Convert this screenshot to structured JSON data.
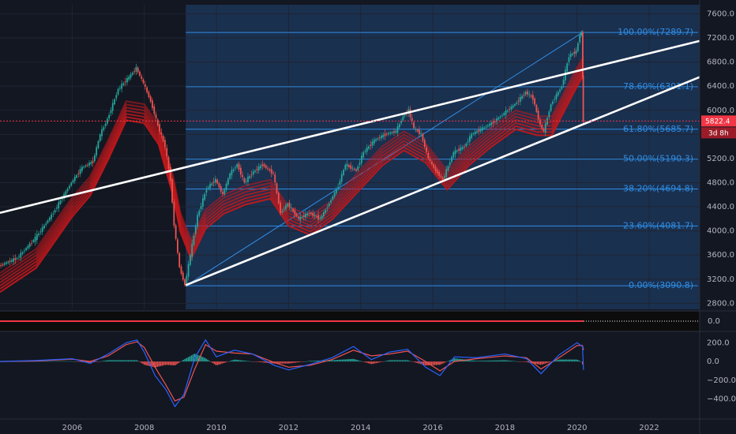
{
  "chart_data": [
    {
      "type": "line",
      "panel": "price",
      "x_range": [
        2004.0,
        2023.4
      ],
      "ylim": [
        2700,
        7750
      ],
      "y_ticks": [
        "7600.0",
        "7200.0",
        "6800.0",
        "6400.0",
        "6000.0",
        "5600.0",
        "5200.0",
        "4800.0",
        "4400.0",
        "4000.0",
        "3600.0",
        "3200.0",
        "2800.0"
      ],
      "price_series": {
        "name": "",
        "points": [
          [
            2004.0,
            3420
          ],
          [
            2004.5,
            3550
          ],
          [
            2005.0,
            3880
          ],
          [
            2005.5,
            4300
          ],
          [
            2006.0,
            4800
          ],
          [
            2006.3,
            5050
          ],
          [
            2006.6,
            5150
          ],
          [
            2006.8,
            5600
          ],
          [
            2007.0,
            5850
          ],
          [
            2007.3,
            6350
          ],
          [
            2007.6,
            6550
          ],
          [
            2007.8,
            6700
          ],
          [
            2008.0,
            6450
          ],
          [
            2008.2,
            6150
          ],
          [
            2008.4,
            5750
          ],
          [
            2008.6,
            5400
          ],
          [
            2008.75,
            4850
          ],
          [
            2008.85,
            4100
          ],
          [
            2009.0,
            3400
          ],
          [
            2009.15,
            3100
          ],
          [
            2009.3,
            3600
          ],
          [
            2009.5,
            4250
          ],
          [
            2009.75,
            4700
          ],
          [
            2010.0,
            4850
          ],
          [
            2010.2,
            4600
          ],
          [
            2010.4,
            4950
          ],
          [
            2010.6,
            5100
          ],
          [
            2010.8,
            4800
          ],
          [
            2011.0,
            4950
          ],
          [
            2011.3,
            5100
          ],
          [
            2011.6,
            4950
          ],
          [
            2011.8,
            4300
          ],
          [
            2012.0,
            4450
          ],
          [
            2012.3,
            4200
          ],
          [
            2012.6,
            4300
          ],
          [
            2012.9,
            4200
          ],
          [
            2013.1,
            4400
          ],
          [
            2013.4,
            4750
          ],
          [
            2013.6,
            5100
          ],
          [
            2013.9,
            5000
          ],
          [
            2014.1,
            5300
          ],
          [
            2014.4,
            5500
          ],
          [
            2014.7,
            5600
          ],
          [
            2015.0,
            5650
          ],
          [
            2015.2,
            5900
          ],
          [
            2015.35,
            6000
          ],
          [
            2015.5,
            5700
          ],
          [
            2015.7,
            5600
          ],
          [
            2015.9,
            5200
          ],
          [
            2016.1,
            5000
          ],
          [
            2016.3,
            4850
          ],
          [
            2016.6,
            5300
          ],
          [
            2016.9,
            5400
          ],
          [
            2017.1,
            5600
          ],
          [
            2017.4,
            5700
          ],
          [
            2017.7,
            5800
          ],
          [
            2018.0,
            5950
          ],
          [
            2018.3,
            6100
          ],
          [
            2018.6,
            6300
          ],
          [
            2018.8,
            6200
          ],
          [
            2019.0,
            5750
          ],
          [
            2019.1,
            5650
          ],
          [
            2019.3,
            6100
          ],
          [
            2019.6,
            6400
          ],
          [
            2019.8,
            6900
          ],
          [
            2020.0,
            6980
          ],
          [
            2020.1,
            7250
          ],
          [
            2020.15,
            7290
          ],
          [
            2020.18,
            5822
          ]
        ]
      },
      "ma_ribbon": {
        "name": "",
        "points": [
          [
            2004.0,
            3300
          ],
          [
            2005.0,
            3700
          ],
          [
            2006.0,
            4550
          ],
          [
            2006.5,
            4900
          ],
          [
            2007.0,
            5500
          ],
          [
            2007.5,
            6150
          ],
          [
            2008.0,
            6100
          ],
          [
            2008.4,
            5750
          ],
          [
            2008.8,
            4900
          ],
          [
            2009.0,
            4300
          ],
          [
            2009.3,
            3850
          ],
          [
            2009.7,
            4350
          ],
          [
            2010.2,
            4600
          ],
          [
            2010.8,
            4750
          ],
          [
            2011.5,
            4850
          ],
          [
            2012.0,
            4400
          ],
          [
            2012.6,
            4250
          ],
          [
            2013.2,
            4500
          ],
          [
            2013.9,
            4950
          ],
          [
            2014.6,
            5400
          ],
          [
            2015.2,
            5650
          ],
          [
            2015.8,
            5450
          ],
          [
            2016.4,
            5000
          ],
          [
            2017.0,
            5400
          ],
          [
            2017.6,
            5700
          ],
          [
            2018.3,
            6000
          ],
          [
            2018.9,
            5900
          ],
          [
            2019.3,
            5900
          ],
          [
            2019.9,
            6600
          ],
          [
            2020.18,
            6900
          ]
        ]
      },
      "channel_lines": [
        {
          "from": [
            2004.0,
            4300
          ],
          "to": [
            2023.4,
            7150
          ]
        },
        {
          "from": [
            2009.15,
            3100
          ],
          "to": [
            2023.4,
            6550
          ]
        }
      ],
      "fib_anchor": {
        "from": [
          2009.15,
          3090.8
        ],
        "to": [
          2020.15,
          7289.7
        ]
      },
      "fib_levels": [
        {
          "label": "100.00%(7289.7)",
          "value": 7289.7
        },
        {
          "label": "78.60%(6391.1)",
          "value": 6391.1
        },
        {
          "label": "61.80%(5685.7)",
          "value": 5685.7
        },
        {
          "label": "50.00%(5190.3)",
          "value": 5190.3
        },
        {
          "label": "38.20%(4694.8)",
          "value": 4694.8
        },
        {
          "label": "23.60%(4081.7)",
          "value": 4081.7
        },
        {
          "label": "0.00%(3090.8)",
          "value": 3090.8
        }
      ],
      "highlight_range": [
        2009.15,
        2023.4
      ],
      "last_price": {
        "label": "5822.4",
        "value": 5822.4
      },
      "countdown": "3d 8h",
      "colors": {
        "up": "#26a69a",
        "down": "#ef5350",
        "ribbon": "#c2181b",
        "fib": "#2f8de4",
        "channel": "#ffffff",
        "highlight": "#1e3a5f",
        "last": "#f23645"
      }
    },
    {
      "type": "line",
      "panel": "oscillator-1",
      "ylim": [
        -1,
        1
      ],
      "y_ticks": [
        "0.0"
      ],
      "value": 0.0,
      "colors": {
        "band": "#f23645"
      }
    },
    {
      "type": "line",
      "panel": "macd",
      "x_ticks": [
        "2006",
        "2008",
        "2010",
        "2012",
        "2014",
        "2016",
        "2018",
        "2020",
        "2022"
      ],
      "x_tick_values": [
        2006,
        2008,
        2010,
        2012,
        2014,
        2016,
        2018,
        2020,
        2022
      ],
      "ylim": [
        -520,
        270
      ],
      "y_ticks": [
        "200.0",
        "0.0",
        "−200.0",
        "−400.0"
      ],
      "y_tick_values": [
        200,
        0,
        -200,
        -400
      ],
      "macd_line": [
        [
          2004.0,
          0
        ],
        [
          2005.0,
          10
        ],
        [
          2006.0,
          30
        ],
        [
          2006.5,
          -20
        ],
        [
          2007.0,
          80
        ],
        [
          2007.5,
          200
        ],
        [
          2007.8,
          230
        ],
        [
          2008.0,
          100
        ],
        [
          2008.3,
          -150
        ],
        [
          2008.6,
          -300
        ],
        [
          2008.85,
          -480
        ],
        [
          2009.1,
          -350
        ],
        [
          2009.4,
          40
        ],
        [
          2009.7,
          230
        ],
        [
          2010.0,
          50
        ],
        [
          2010.5,
          120
        ],
        [
          2011.0,
          80
        ],
        [
          2011.6,
          -40
        ],
        [
          2012.0,
          -90
        ],
        [
          2012.6,
          -30
        ],
        [
          2013.2,
          40
        ],
        [
          2013.8,
          160
        ],
        [
          2014.3,
          20
        ],
        [
          2014.8,
          100
        ],
        [
          2015.3,
          130
        ],
        [
          2015.8,
          -60
        ],
        [
          2016.2,
          -150
        ],
        [
          2016.6,
          50
        ],
        [
          2017.2,
          40
        ],
        [
          2018.0,
          80
        ],
        [
          2018.6,
          30
        ],
        [
          2019.0,
          -130
        ],
        [
          2019.5,
          70
        ],
        [
          2020.0,
          200
        ],
        [
          2020.15,
          160
        ],
        [
          2020.18,
          -90
        ]
      ],
      "signal_line": [
        [
          2004.0,
          0
        ],
        [
          2005.0,
          5
        ],
        [
          2006.0,
          25
        ],
        [
          2006.5,
          0
        ],
        [
          2007.0,
          60
        ],
        [
          2007.5,
          180
        ],
        [
          2007.8,
          210
        ],
        [
          2008.0,
          150
        ],
        [
          2008.3,
          -60
        ],
        [
          2008.6,
          -250
        ],
        [
          2008.85,
          -420
        ],
        [
          2009.1,
          -380
        ],
        [
          2009.4,
          -80
        ],
        [
          2009.7,
          180
        ],
        [
          2010.0,
          110
        ],
        [
          2010.5,
          90
        ],
        [
          2011.0,
          80
        ],
        [
          2011.6,
          -10
        ],
        [
          2012.0,
          -60
        ],
        [
          2012.6,
          -40
        ],
        [
          2013.2,
          20
        ],
        [
          2013.8,
          120
        ],
        [
          2014.3,
          60
        ],
        [
          2014.8,
          80
        ],
        [
          2015.3,
          110
        ],
        [
          2015.8,
          0
        ],
        [
          2016.2,
          -100
        ],
        [
          2016.6,
          0
        ],
        [
          2017.2,
          30
        ],
        [
          2018.0,
          60
        ],
        [
          2018.6,
          40
        ],
        [
          2019.0,
          -80
        ],
        [
          2019.5,
          40
        ],
        [
          2020.0,
          170
        ],
        [
          2020.15,
          170
        ],
        [
          2020.18,
          120
        ]
      ],
      "colors": {
        "macd": "#2962ff",
        "signal": "#ef5350",
        "hist_up": "#26a69a",
        "hist_down": "#ef5350"
      }
    }
  ]
}
